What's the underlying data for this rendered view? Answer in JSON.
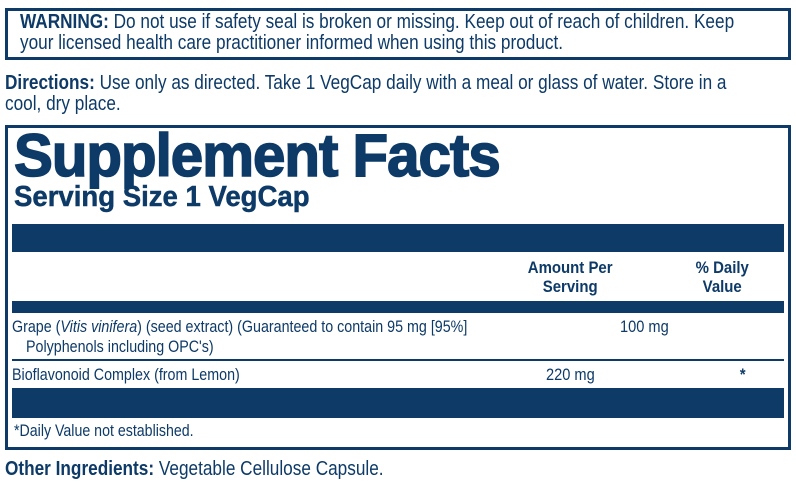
{
  "colors": {
    "navy": "#0d3a67",
    "background": "#ffffff"
  },
  "warning": {
    "label": "WARNING:",
    "line1_rest": " Do not use if safety seal is broken or missing. Keep out of reach of children. Keep",
    "line2": "your licensed health care practitioner informed when using this product."
  },
  "directions": {
    "label": "Directions:",
    "line1_rest": " Use only as directed. Take 1 VegCap daily with a meal or glass of water. Store in a",
    "line2": "cool, dry place."
  },
  "supplement_facts": {
    "title": "Supplement Facts",
    "serving_size": "Serving Size 1 VegCap",
    "columns": {
      "amount_line1": "Amount Per",
      "amount_line2": "Serving",
      "dv_line1": "% Daily",
      "dv_line2": "Value"
    },
    "rows": [
      {
        "name_prefix": "Grape (",
        "name_italic": "Vitis vinifera",
        "name_suffix": ") (seed extract) (Guaranteed to contain 95 mg [95%]",
        "name_line2": "Polyphenols including OPC's)",
        "amount": "100 mg",
        "daily_value": "*"
      },
      {
        "name_prefix": "Bioflavonoid Complex (from Lemon)",
        "name_italic": "",
        "name_suffix": "",
        "name_line2": "",
        "amount": "220 mg",
        "daily_value": "*"
      }
    ],
    "footnote": "*Daily Value not established."
  },
  "other_ingredients": {
    "label": "Other Ingredients:",
    "text": " Vegetable Cellulose Capsule."
  }
}
